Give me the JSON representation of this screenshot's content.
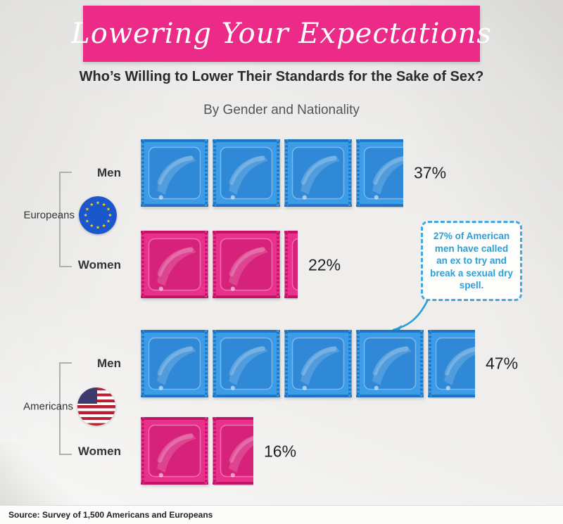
{
  "header": {
    "title": "Lowering Your Expectations",
    "subtitle": "Who’s Willing to Lower Their Standards for the Sake of Sex?"
  },
  "chart_data": {
    "type": "bar",
    "title": "By Gender and Nationality",
    "unit_per_icon": 10,
    "icon": "condom-packet",
    "xlim": [
      0,
      50
    ],
    "groups": [
      {
        "name": "Europeans",
        "flag": "european-union-flag",
        "rows": [
          {
            "label": "Men",
            "value": 37,
            "value_label": "37%",
            "color": "#3d9ce8",
            "color_dark": "#1f74c0"
          },
          {
            "label": "Women",
            "value": 22,
            "value_label": "22%",
            "color": "#e9308a",
            "color_dark": "#c01268"
          }
        ]
      },
      {
        "name": "Americans",
        "flag": "united-states-flag",
        "rows": [
          {
            "label": "Men",
            "value": 47,
            "value_label": "47%",
            "color": "#3d9ce8",
            "color_dark": "#1f74c0"
          },
          {
            "label": "Women",
            "value": 16,
            "value_label": "16%",
            "color": "#e9308a",
            "color_dark": "#c01268"
          }
        ]
      }
    ]
  },
  "callout": {
    "text": "27% of American men have called an ex to try and break a sexual dry spell."
  },
  "footer": {
    "source": "Source: Survey of 1,500 Americans and Europeans"
  },
  "colors": {
    "banner": "#ec2a88",
    "men": "#3d9ce8",
    "women": "#e9308a",
    "callout_border": "#45a8dc",
    "callout_text": "#2d9fd6",
    "eu_blue": "#1a56cc",
    "eu_star": "#ffd617",
    "us_red": "#b22234",
    "us_blue": "#3c3b6e"
  }
}
